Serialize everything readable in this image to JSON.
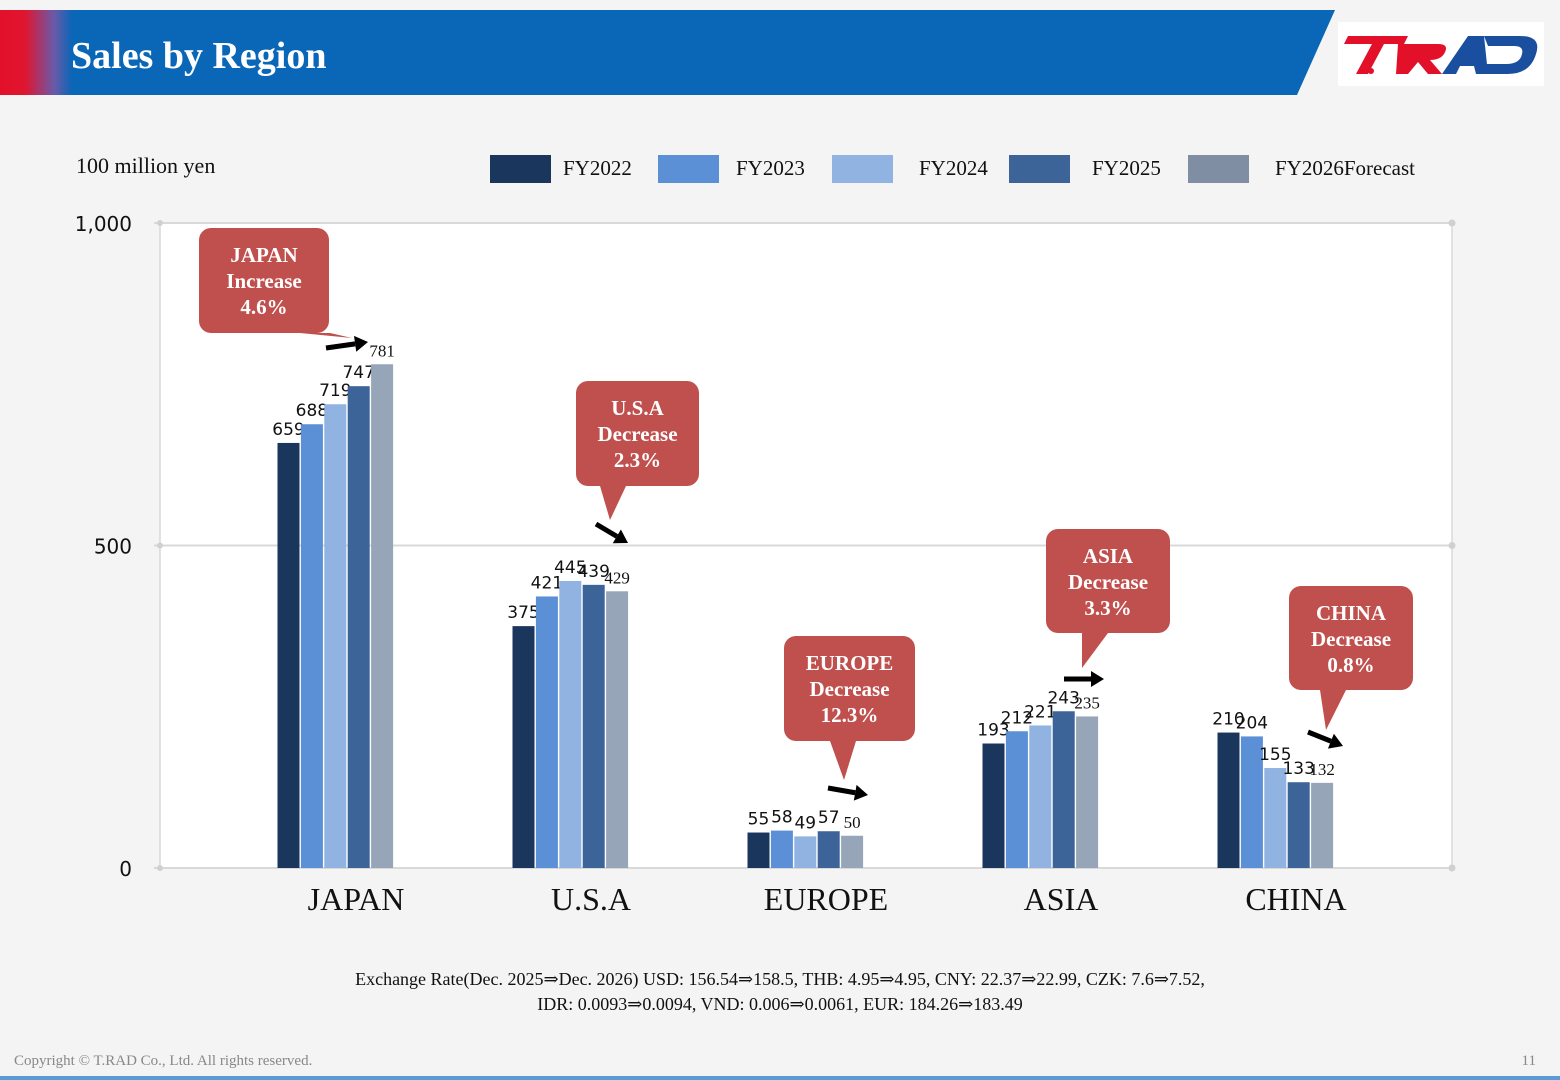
{
  "header": {
    "title": "Sales by Region",
    "logo_text": "T.RAD",
    "brand_blue": "#0a66b7",
    "brand_red": "#e3102a"
  },
  "chart_data": {
    "type": "bar",
    "unit_label": "100 million yen",
    "categories": [
      "JAPAN",
      "U.S.A",
      "EUROPE",
      "ASIA",
      "CHINA"
    ],
    "series": [
      {
        "name": "FY2022",
        "color": "#1b365d",
        "values": [
          659,
          375,
          55,
          193,
          210
        ]
      },
      {
        "name": "FY2023",
        "color": "#5b8fd6",
        "values": [
          688,
          421,
          58,
          212,
          204
        ]
      },
      {
        "name": "FY2024",
        "color": "#91b3e2",
        "values": [
          719,
          445,
          49,
          221,
          155
        ]
      },
      {
        "name": "FY2025",
        "color": "#3d6499",
        "values": [
          747,
          439,
          57,
          243,
          133
        ]
      },
      {
        "name": "FY2026Forecast",
        "color": "#97a5b8",
        "values": [
          781,
          429,
          50,
          235,
          132
        ]
      }
    ],
    "ylim": [
      0,
      1000
    ],
    "yticks": [
      "0",
      "500",
      "1,000"
    ],
    "grid": true,
    "legend_position": "top",
    "callouts": [
      {
        "region": "JAPAN",
        "lines": [
          "JAPAN",
          "Increase",
          "4.6%"
        ],
        "trend": "up"
      },
      {
        "region": "U.S.A",
        "lines": [
          "U.S.A",
          "Decrease",
          "2.3%"
        ],
        "trend": "down"
      },
      {
        "region": "EUROPE",
        "lines": [
          "EUROPE",
          "Decrease",
          "12.3%"
        ],
        "trend": "down"
      },
      {
        "region": "ASIA",
        "lines": [
          "ASIA",
          "Decrease",
          "3.3%"
        ],
        "trend": "down"
      },
      {
        "region": "CHINA",
        "lines": [
          "CHINA",
          "Decrease",
          "0.8%"
        ],
        "trend": "down"
      }
    ],
    "callout_color": "#c0504d"
  },
  "footnote": {
    "line1": "Exchange Rate(Dec. 2025⇒Dec. 2026) USD: 156.54⇒158.5, THB: 4.95⇒4.95, CNY: 22.37⇒22.99, CZK: 7.6⇒7.52,",
    "line2": "IDR: 0.0093⇒0.0094, VND: 0.006⇒0.0061, EUR: 184.26⇒183.49"
  },
  "footer": {
    "copyright": "Copyright © T.RAD Co., Ltd. All rights reserved.",
    "page_number": "11"
  }
}
